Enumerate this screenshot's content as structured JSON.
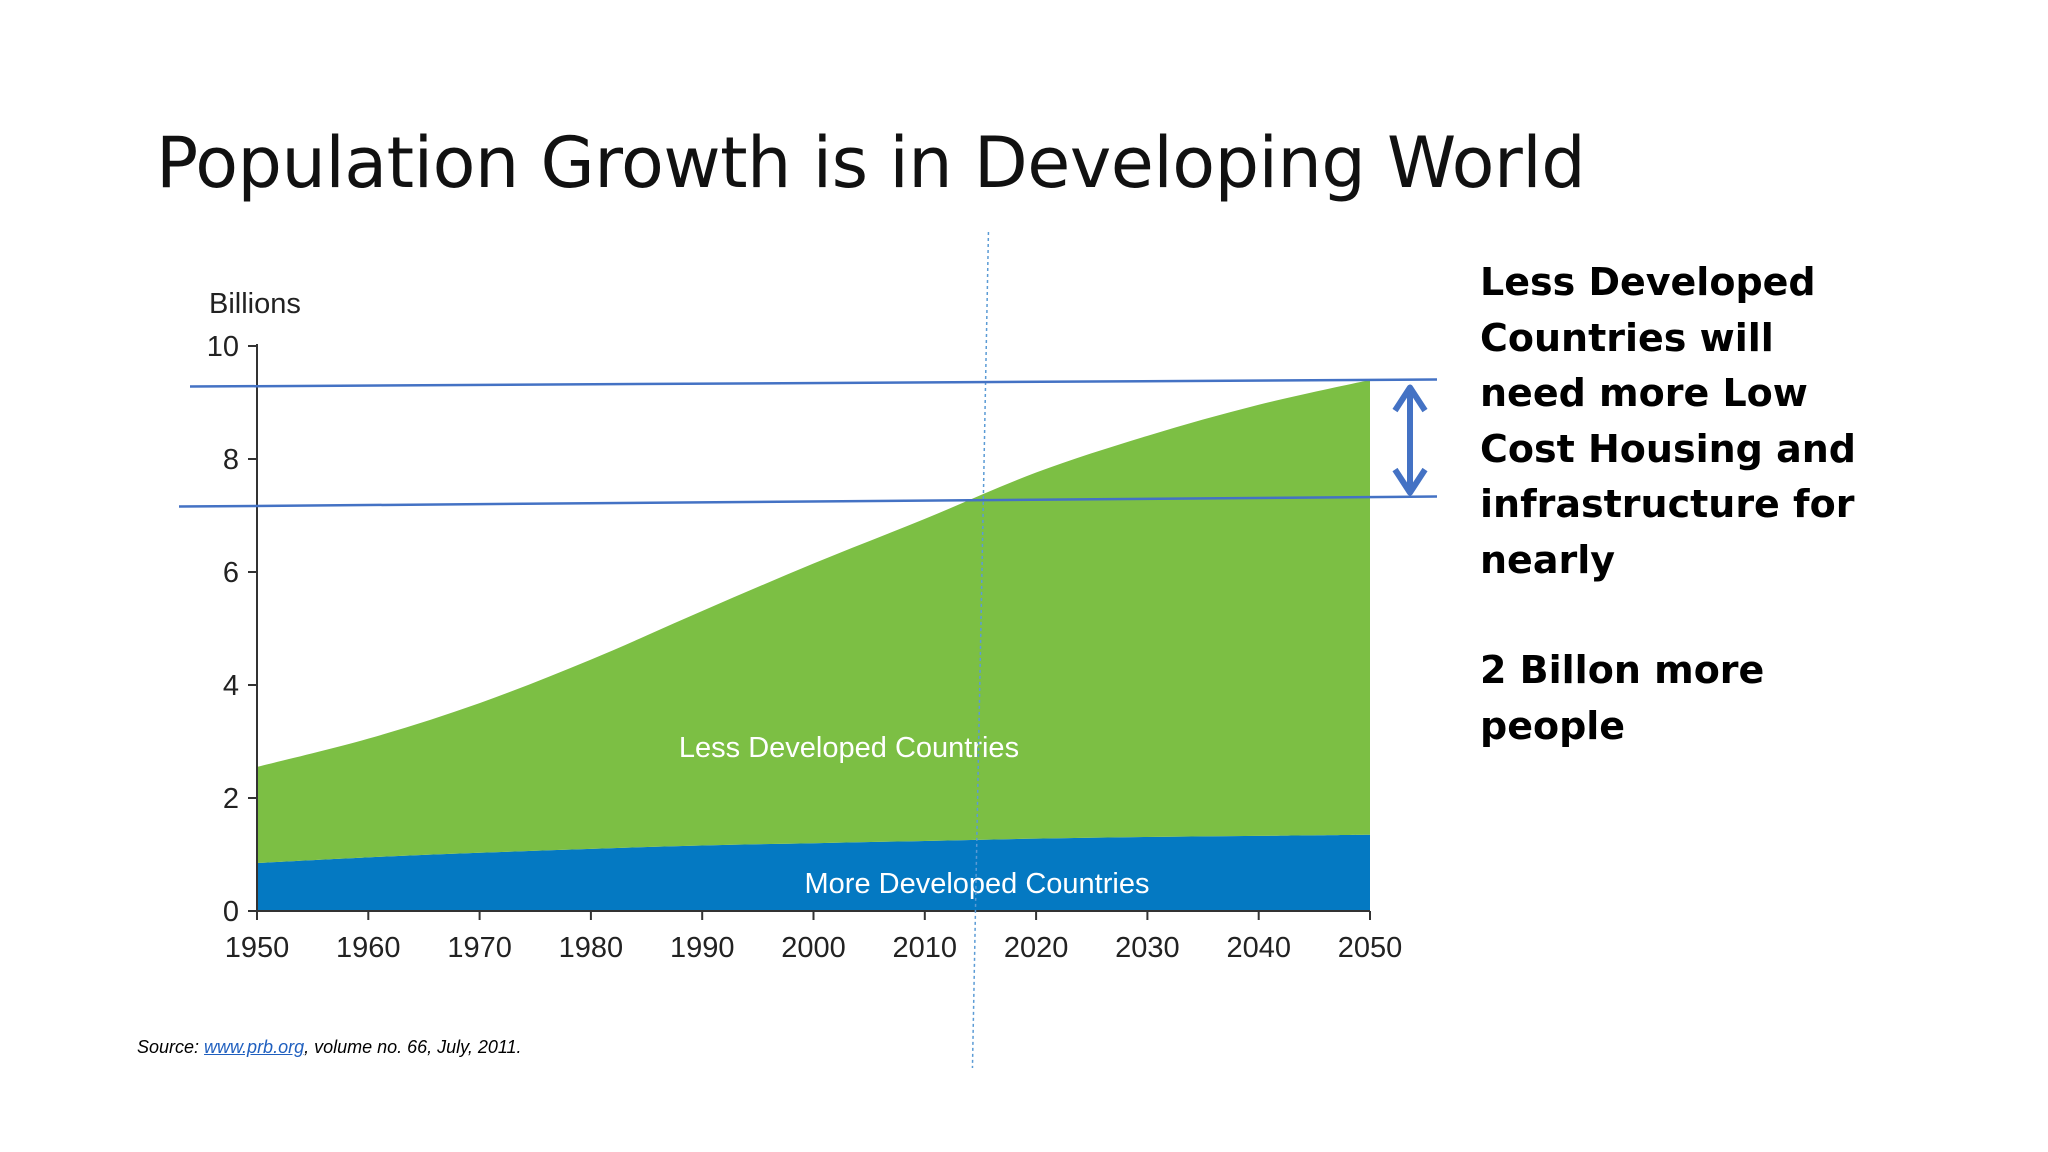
{
  "slide": {
    "title": "Population Growth is in Developing World",
    "note_paragraphs": [
      "Less Developed Countries will need more Low Cost Housing and infrastructure for nearly",
      "2 Billon more people"
    ],
    "source_prefix": "Source: ",
    "source_link": "www.prb.org",
    "source_suffix": ", volume no. 66, July, 2011."
  },
  "chart_data": {
    "type": "area",
    "ylabel": "Billions",
    "xlabel": "",
    "x": [
      1950,
      1960,
      1970,
      1980,
      1990,
      2000,
      2010,
      2020,
      2030,
      2040,
      2050
    ],
    "xticks": [
      "1950",
      "1960",
      "1970",
      "1980",
      "1990",
      "2000",
      "2010",
      "2020",
      "2030",
      "2040",
      "2050"
    ],
    "yticks": [
      "0",
      "2",
      "4",
      "6",
      "8",
      "10"
    ],
    "ylim": [
      0,
      10
    ],
    "xlim": [
      1950,
      2050
    ],
    "stacked": true,
    "series": [
      {
        "name": "More Developed Countries",
        "values": [
          0.85,
          0.95,
          1.03,
          1.1,
          1.16,
          1.2,
          1.24,
          1.28,
          1.31,
          1.33,
          1.35
        ],
        "color": "#0479c2"
      },
      {
        "name": "Less Developed Countries",
        "values": [
          1.7,
          2.1,
          2.65,
          3.35,
          4.15,
          4.95,
          5.7,
          6.48,
          7.1,
          7.63,
          8.05
        ],
        "color": "#7cbf44"
      }
    ],
    "annotations": {
      "upper_line_value": 9.3,
      "lower_line_value": 7.3,
      "vertical_marker_year": 2015,
      "line_color": "#4472c4",
      "arrow": "double-headed between upper and lower lines"
    }
  }
}
